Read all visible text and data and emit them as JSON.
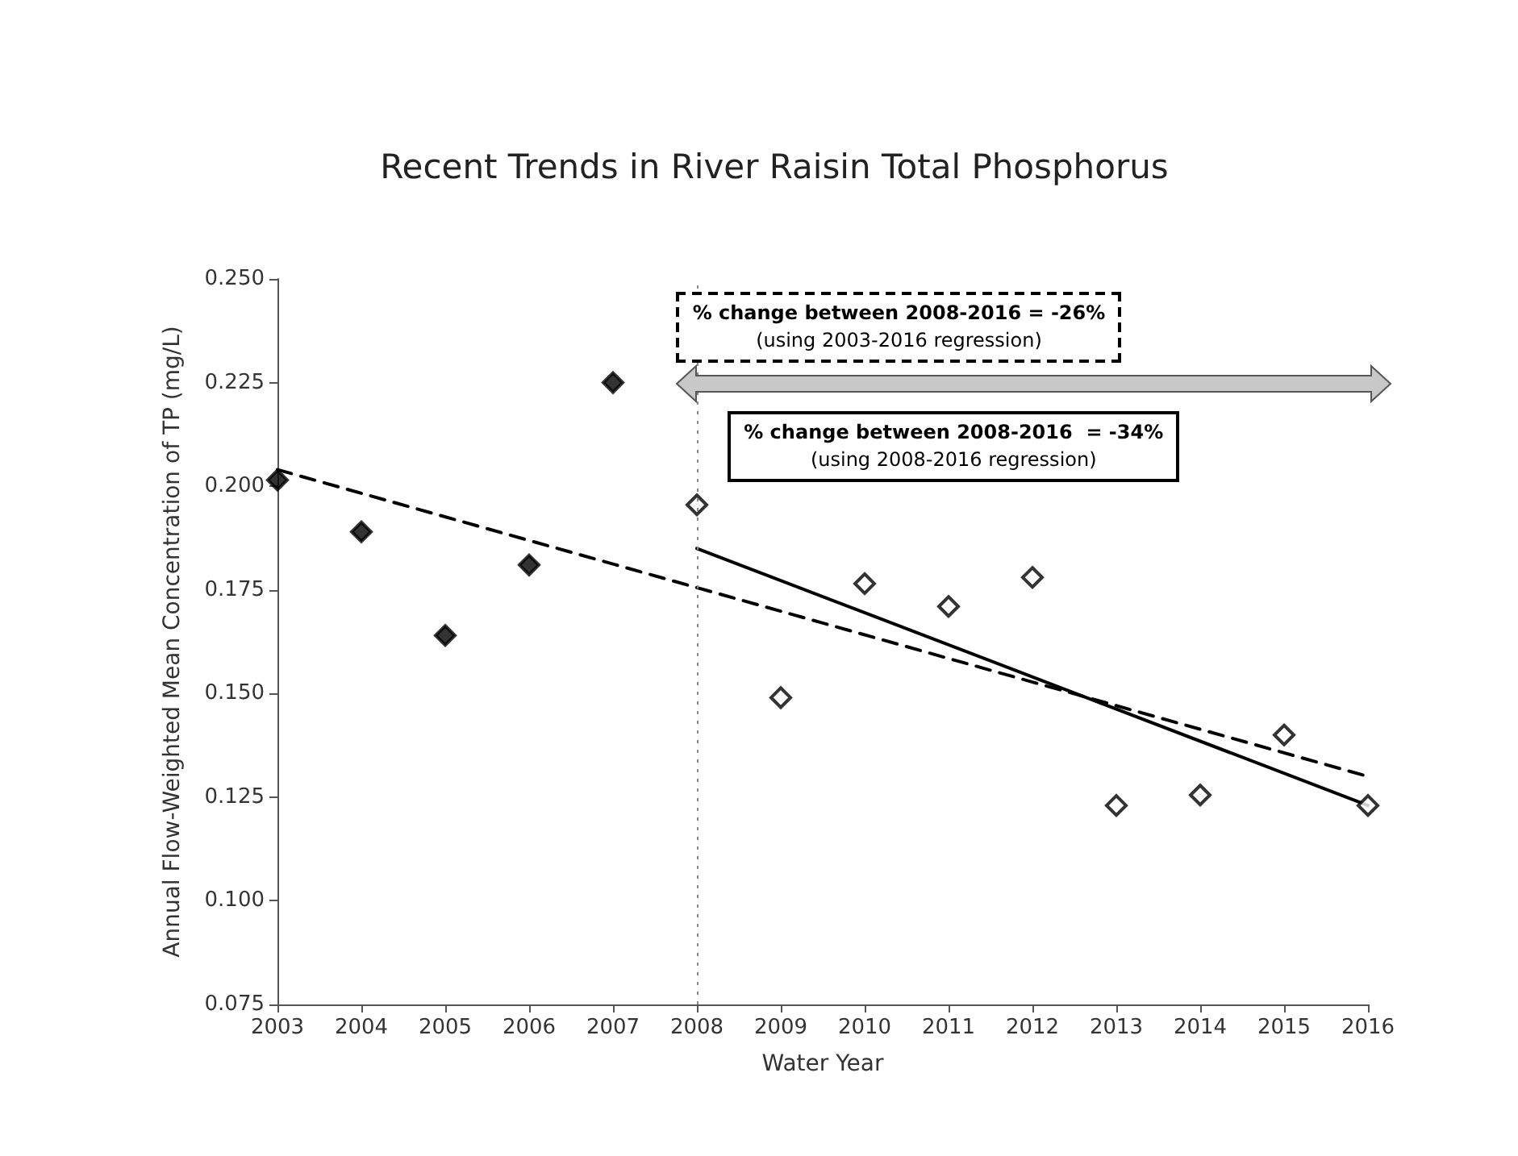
{
  "chart_data": {
    "type": "scatter",
    "title": "Recent Trends in River Raisin Total Phosphorus",
    "xlabel": "Water Year",
    "ylabel": "Annual Flow-Weighted Mean Concentration of TP (mg/L)",
    "x": [
      2003,
      2004,
      2005,
      2006,
      2007
    ],
    "series": [
      {
        "color": "#000000",
        "marker": "diamond",
        "values": [
          0.2015,
          0.189,
          0.164,
          0.181,
          0.225
        ]
      },
      {
        "color": "#ffffff",
        "marker": "diamond",
        "x": [
          2008,
          2009,
          2010,
          2011,
          2012,
          2013,
          2014,
          2015,
          2016
        ],
        "values": [
          0.1955,
          0.149,
          0.1765,
          0.171,
          0.178,
          0.123,
          0.1255,
          0.14,
          0.123
        ]
      },
      {
        "type": "line",
        "color": "#000000",
        "marker": "none",
        "line_style": "dashed",
        "x": [
          2003,
          2016
        ],
        "values": [
          0.204,
          0.13
        ]
      },
      {
        "type": "line",
        "color": "#000000",
        "marker": "none",
        "line_style": "solid",
        "x": [
          2008,
          2016
        ],
        "values": [
          0.185,
          0.123
        ]
      }
    ],
    "xlim": [
      2003,
      2016
    ],
    "xticks": [
      2003,
      2004,
      2005,
      2006,
      2007,
      2008,
      2009,
      2010,
      2011,
      2012,
      2013,
      2014,
      2015,
      2016
    ],
    "ylim": [
      0.075,
      0.25
    ],
    "yticks": [
      {
        "value": 0.075,
        "label": "0.075"
      },
      {
        "value": 0.1,
        "label": "0.100"
      },
      {
        "value": 0.125,
        "label": "0.125"
      },
      {
        "value": 0.15,
        "label": "0.150"
      },
      {
        "value": 0.175,
        "label": "0.175"
      },
      {
        "value": 0.2,
        "label": "0.200"
      },
      {
        "value": 0.225,
        "label": "0.225"
      },
      {
        "value": 0.25,
        "label": "0.250"
      }
    ],
    "ref_lines": [
      {
        "axis": "x",
        "value": 2008,
        "color": "#888888",
        "line_style": "dotted"
      }
    ],
    "annotations": [
      "% change between 2008-2016 = -26%\n(using 2003-2016 regression)",
      "% change between 2008-2016  = -34%\n(using 2008-2016 regression)"
    ],
    "grid": false
  }
}
